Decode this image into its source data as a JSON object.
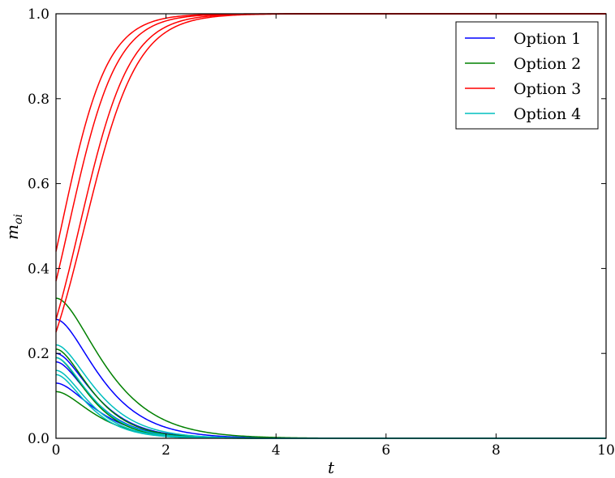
{
  "chart_data": {
    "type": "line",
    "title": "",
    "xlabel": "t",
    "ylabel": "m_oi",
    "xlim": [
      0,
      10
    ],
    "ylim": [
      0,
      1
    ],
    "x_ticks": [
      "0",
      "2",
      "4",
      "6",
      "8",
      "10"
    ],
    "y_ticks": [
      "0.0",
      "0.2",
      "0.4",
      "0.6",
      "0.8",
      "1.0"
    ],
    "grid": false,
    "legend_position": "top-right",
    "series": [
      {
        "name": "Option 1",
        "color": "#0000ff",
        "curves": [
          {
            "start": 0.28,
            "rate": 2.0
          },
          {
            "start": 0.2,
            "rate": 2.3
          },
          {
            "start": 0.18,
            "rate": 2.4
          },
          {
            "start": 0.13,
            "rate": 2.2
          }
        ]
      },
      {
        "name": "Option 2",
        "color": "#008000",
        "curves": [
          {
            "start": 0.33,
            "rate": 1.8
          },
          {
            "start": 0.21,
            "rate": 2.4
          },
          {
            "start": 0.19,
            "rate": 2.6
          },
          {
            "start": 0.11,
            "rate": 2.3
          }
        ]
      },
      {
        "name": "Option 3",
        "color": "#ff0000",
        "curves": [
          {
            "start": 0.44,
            "rate": 2.4
          },
          {
            "start": 0.37,
            "rate": 2.3
          },
          {
            "start": 0.28,
            "rate": 2.2
          },
          {
            "start": 0.25,
            "rate": 2.1
          }
        ]
      },
      {
        "name": "Option 4",
        "color": "#00bfbf",
        "curves": [
          {
            "start": 0.22,
            "rate": 2.2
          },
          {
            "start": 0.19,
            "rate": 2.5
          },
          {
            "start": 0.16,
            "rate": 2.6
          },
          {
            "start": 0.15,
            "rate": 2.7
          }
        ]
      }
    ]
  }
}
